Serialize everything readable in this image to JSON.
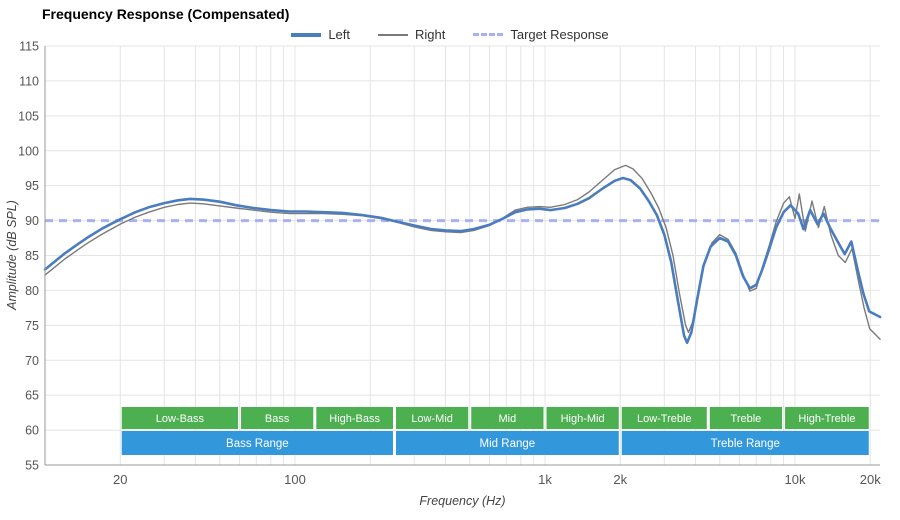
{
  "title": "Frequency Response (Compensated)",
  "legend": {
    "items": [
      {
        "key": "left",
        "label": "Left",
        "color": "#4a7dbe",
        "thickness": 4,
        "dash": false
      },
      {
        "key": "right",
        "label": "Right",
        "color": "#7a7a7a",
        "thickness": 2,
        "dash": false
      },
      {
        "key": "target",
        "label": "Target Response",
        "color": "#a8b2f0",
        "thickness": 3,
        "dash": true
      }
    ]
  },
  "axes": {
    "x_label": "Frequency (Hz)",
    "y_label": "Amplitude (dB SPL)",
    "x_scale": "log",
    "x_ticks": [
      {
        "f": 20,
        "label": "20"
      },
      {
        "f": 100,
        "label": "100"
      },
      {
        "f": 1000,
        "label": "1k"
      },
      {
        "f": 2000,
        "label": "2k"
      },
      {
        "f": 10000,
        "label": "10k"
      },
      {
        "f": 20000,
        "label": "20k"
      }
    ],
    "y_ticks": [
      55,
      60,
      65,
      70,
      75,
      80,
      85,
      90,
      95,
      100,
      105,
      110,
      115
    ]
  },
  "colors": {
    "grid": "#e4e4e4",
    "axis": "#999999",
    "tick_text": "#555555",
    "band_sub": "#4caf50",
    "band_main": "#3398db",
    "band_text": "#ffffff",
    "target": "#a8b2f0"
  },
  "chart_data": {
    "type": "line",
    "x_scale": "log",
    "x_range_hz": [
      10,
      21900
    ],
    "y_range_db": [
      55,
      115
    ],
    "target_response_db": 90,
    "series": [
      {
        "name": "Left",
        "color": "#4a7dbe",
        "width": 2.6,
        "points": [
          [
            10,
            83.0
          ],
          [
            11,
            84.2
          ],
          [
            12,
            85.3
          ],
          [
            13.5,
            86.6
          ],
          [
            15,
            87.7
          ],
          [
            17,
            88.9
          ],
          [
            20,
            90.2
          ],
          [
            23,
            91.2
          ],
          [
            26,
            91.9
          ],
          [
            30,
            92.5
          ],
          [
            34,
            92.9
          ],
          [
            38,
            93.1
          ],
          [
            43,
            93.0
          ],
          [
            50,
            92.7
          ],
          [
            58,
            92.2
          ],
          [
            68,
            91.8
          ],
          [
            80,
            91.5
          ],
          [
            95,
            91.3
          ],
          [
            110,
            91.3
          ],
          [
            130,
            91.2
          ],
          [
            155,
            91.1
          ],
          [
            185,
            90.8
          ],
          [
            220,
            90.4
          ],
          [
            260,
            89.8
          ],
          [
            300,
            89.3
          ],
          [
            350,
            88.8
          ],
          [
            400,
            88.6
          ],
          [
            460,
            88.5
          ],
          [
            520,
            88.8
          ],
          [
            600,
            89.4
          ],
          [
            680,
            90.3
          ],
          [
            760,
            91.2
          ],
          [
            850,
            91.6
          ],
          [
            950,
            91.7
          ],
          [
            1050,
            91.5
          ],
          [
            1200,
            91.8
          ],
          [
            1350,
            92.4
          ],
          [
            1500,
            93.2
          ],
          [
            1700,
            94.6
          ],
          [
            1900,
            95.7
          ],
          [
            2050,
            96.1
          ],
          [
            2200,
            95.8
          ],
          [
            2400,
            94.6
          ],
          [
            2600,
            92.8
          ],
          [
            2800,
            90.8
          ],
          [
            3000,
            88.0
          ],
          [
            3200,
            84.0
          ],
          [
            3400,
            78.5
          ],
          [
            3600,
            73.5
          ],
          [
            3700,
            72.5
          ],
          [
            3850,
            74.0
          ],
          [
            4050,
            78.5
          ],
          [
            4300,
            83.5
          ],
          [
            4600,
            86.3
          ],
          [
            5000,
            87.5
          ],
          [
            5400,
            87.0
          ],
          [
            5800,
            85.0
          ],
          [
            6200,
            82.0
          ],
          [
            6600,
            80.3
          ],
          [
            7000,
            80.8
          ],
          [
            7400,
            83.0
          ],
          [
            7900,
            86.0
          ],
          [
            8400,
            89.0
          ],
          [
            9000,
            91.2
          ],
          [
            9600,
            92.2
          ],
          [
            10300,
            91.0
          ],
          [
            10800,
            88.8
          ],
          [
            11500,
            91.5
          ],
          [
            12300,
            89.5
          ],
          [
            13000,
            91.0
          ],
          [
            13800,
            89.0
          ],
          [
            14800,
            87.0
          ],
          [
            15800,
            85.2
          ],
          [
            16800,
            87.0
          ],
          [
            17800,
            83.0
          ],
          [
            18800,
            79.5
          ],
          [
            19800,
            77.0
          ],
          [
            21900,
            76.2
          ]
        ]
      },
      {
        "name": "Right",
        "color": "#7a7a7a",
        "width": 1.4,
        "points": [
          [
            10,
            82.2
          ],
          [
            11,
            83.4
          ],
          [
            12,
            84.5
          ],
          [
            13.5,
            85.8
          ],
          [
            15,
            86.9
          ],
          [
            17,
            88.1
          ],
          [
            20,
            89.5
          ],
          [
            23,
            90.5
          ],
          [
            26,
            91.2
          ],
          [
            30,
            91.9
          ],
          [
            34,
            92.3
          ],
          [
            38,
            92.5
          ],
          [
            43,
            92.4
          ],
          [
            50,
            92.1
          ],
          [
            58,
            91.8
          ],
          [
            68,
            91.5
          ],
          [
            80,
            91.2
          ],
          [
            95,
            91.0
          ],
          [
            110,
            91.0
          ],
          [
            130,
            91.0
          ],
          [
            155,
            90.9
          ],
          [
            185,
            90.7
          ],
          [
            220,
            90.3
          ],
          [
            260,
            89.7
          ],
          [
            300,
            89.1
          ],
          [
            350,
            88.6
          ],
          [
            400,
            88.4
          ],
          [
            460,
            88.3
          ],
          [
            520,
            88.6
          ],
          [
            600,
            89.3
          ],
          [
            680,
            90.4
          ],
          [
            760,
            91.5
          ],
          [
            850,
            91.9
          ],
          [
            950,
            92.0
          ],
          [
            1050,
            91.9
          ],
          [
            1200,
            92.3
          ],
          [
            1350,
            93.0
          ],
          [
            1500,
            94.1
          ],
          [
            1700,
            95.8
          ],
          [
            1900,
            97.3
          ],
          [
            2100,
            97.9
          ],
          [
            2250,
            97.4
          ],
          [
            2450,
            96.0
          ],
          [
            2650,
            94.0
          ],
          [
            2850,
            91.8
          ],
          [
            3050,
            89.0
          ],
          [
            3250,
            85.0
          ],
          [
            3450,
            79.5
          ],
          [
            3650,
            75.0
          ],
          [
            3750,
            74.0
          ],
          [
            3900,
            75.5
          ],
          [
            4100,
            79.5
          ],
          [
            4350,
            84.0
          ],
          [
            4650,
            86.8
          ],
          [
            5000,
            88.0
          ],
          [
            5400,
            87.3
          ],
          [
            5800,
            85.3
          ],
          [
            6200,
            82.3
          ],
          [
            6600,
            79.9
          ],
          [
            7000,
            80.3
          ],
          [
            7400,
            83.3
          ],
          [
            7900,
            86.5
          ],
          [
            8400,
            89.8
          ],
          [
            9000,
            92.5
          ],
          [
            9500,
            93.4
          ],
          [
            10000,
            90.3
          ],
          [
            10400,
            93.8
          ],
          [
            11000,
            88.5
          ],
          [
            11700,
            92.8
          ],
          [
            12400,
            89.0
          ],
          [
            13100,
            92.0
          ],
          [
            13900,
            88.0
          ],
          [
            14900,
            85.0
          ],
          [
            15900,
            84.0
          ],
          [
            16900,
            86.0
          ],
          [
            17900,
            81.5
          ],
          [
            18900,
            77.5
          ],
          [
            19900,
            74.5
          ],
          [
            21900,
            73.0
          ]
        ]
      }
    ],
    "bands": {
      "sub": [
        {
          "label": "Low-Bass",
          "from": 20,
          "to": 60
        },
        {
          "label": "Bass",
          "from": 60,
          "to": 120
        },
        {
          "label": "High-Bass",
          "from": 120,
          "to": 250
        },
        {
          "label": "Low-Mid",
          "from": 250,
          "to": 500
        },
        {
          "label": "Mid",
          "from": 500,
          "to": 1000
        },
        {
          "label": "High-Mid",
          "from": 1000,
          "to": 2000
        },
        {
          "label": "Low-Treble",
          "from": 2000,
          "to": 4500
        },
        {
          "label": "Treble",
          "from": 4500,
          "to": 9000
        },
        {
          "label": "High-Treble",
          "from": 9000,
          "to": 20000
        }
      ],
      "main": [
        {
          "label": "Bass Range",
          "from": 20,
          "to": 250
        },
        {
          "label": "Mid Range",
          "from": 250,
          "to": 2000
        },
        {
          "label": "Treble Range",
          "from": 2000,
          "to": 20000
        }
      ]
    }
  }
}
